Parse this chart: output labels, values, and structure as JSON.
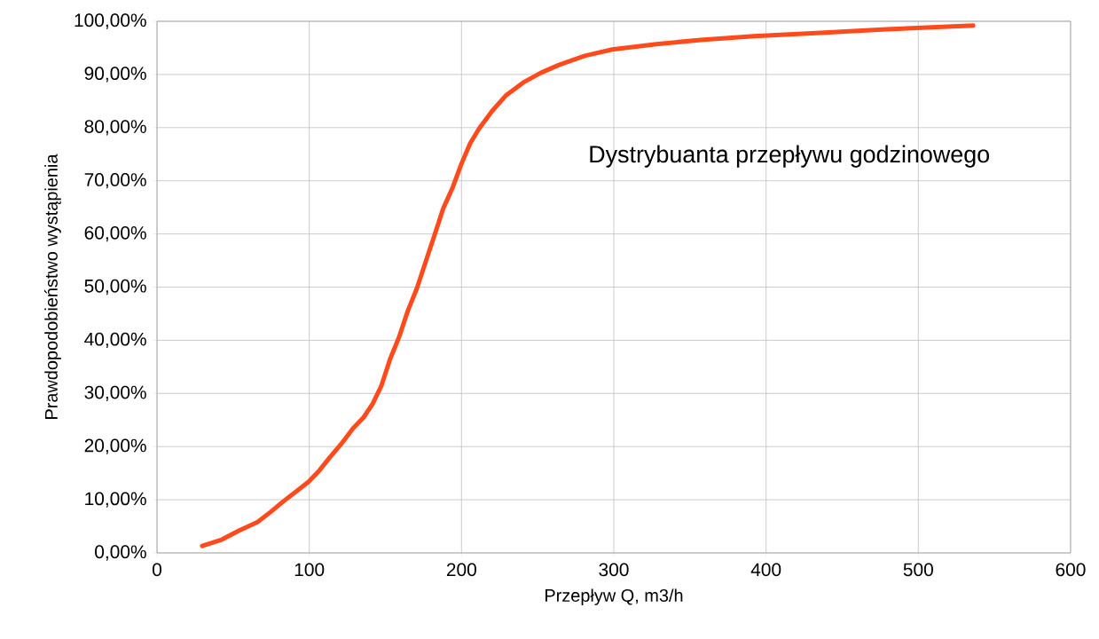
{
  "chart_data": {
    "type": "line",
    "title": "Dystrybuanta przepływu godzinowego",
    "xlabel": "Przepływ Q, m3/h",
    "ylabel": "Prawdopodobieństwo wystąpienia",
    "x": [
      29.7,
      42.5,
      54,
      66,
      74.6,
      83,
      92,
      99.6,
      106.6,
      113.6,
      121,
      128.7,
      135.7,
      141.5,
      147.3,
      153,
      159,
      164.8,
      170.6,
      176.5,
      182.3,
      188,
      194,
      199.8,
      205.6,
      211.5,
      220,
      229,
      240.6,
      252,
      264,
      281,
      299,
      328,
      357,
      392,
      433,
      479,
      536
    ],
    "series": [
      {
        "color": "#ff4a1c",
        "values": [
          1.3,
          2.5,
          4.2,
          5.8,
          7.7,
          9.7,
          11.7,
          13.4,
          15.5,
          18,
          20.5,
          23.4,
          25.5,
          28,
          31.4,
          36.4,
          40.6,
          45.6,
          49.7,
          54.8,
          59.8,
          64.8,
          68.6,
          73.1,
          77,
          79.8,
          83.1,
          86,
          88.5,
          90.3,
          91.8,
          93.5,
          94.7,
          95.7,
          96.5,
          97.2,
          97.8,
          98.5,
          99.2
        ]
      }
    ],
    "xlim": [
      0,
      600
    ],
    "xticks": [
      0,
      100,
      200,
      300,
      400,
      500,
      600
    ],
    "ylim": [
      0,
      100
    ],
    "yticks": [
      {
        "value": 0,
        "label": "0,00%"
      },
      {
        "value": 10,
        "label": "10,00%"
      },
      {
        "value": 20,
        "label": "20,00%"
      },
      {
        "value": 30,
        "label": "30,00%"
      },
      {
        "value": 40,
        "label": "40,00%"
      },
      {
        "value": 50,
        "label": "50,00%"
      },
      {
        "value": 60,
        "label": "60,00%"
      },
      {
        "value": 70,
        "label": "70,00%"
      },
      {
        "value": 80,
        "label": "80,00%"
      },
      {
        "value": 90,
        "label": "90,00%"
      },
      {
        "value": 100,
        "label": "100,00%"
      }
    ],
    "grid": true,
    "marker": "none",
    "line_style": "solid"
  }
}
